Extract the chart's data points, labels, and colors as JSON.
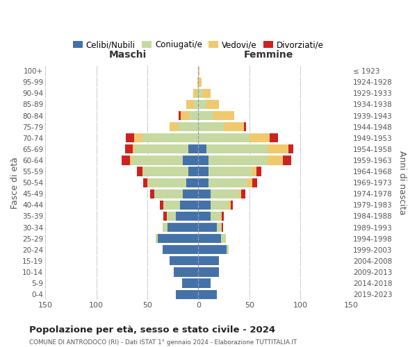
{
  "age_groups": [
    "100+",
    "95-99",
    "90-94",
    "85-89",
    "80-84",
    "75-79",
    "70-74",
    "65-69",
    "60-64",
    "55-59",
    "50-54",
    "45-49",
    "40-44",
    "35-39",
    "30-34",
    "25-29",
    "20-24",
    "15-19",
    "10-14",
    "5-9",
    "0-4"
  ],
  "birth_years": [
    "≤ 1923",
    "1924-1928",
    "1929-1933",
    "1934-1938",
    "1939-1943",
    "1944-1948",
    "1949-1953",
    "1954-1958",
    "1959-1963",
    "1964-1968",
    "1969-1973",
    "1974-1978",
    "1979-1983",
    "1984-1988",
    "1989-1993",
    "1994-1998",
    "1999-2003",
    "2004-2008",
    "2009-2013",
    "2014-2018",
    "2019-2023"
  ],
  "colors": {
    "celibi": "#4472a8",
    "coniugati": "#c5d9a0",
    "vedovi": "#f0c96e",
    "divorziati": "#cc2222"
  },
  "males": {
    "celibi": [
      0,
      0,
      0,
      0,
      0,
      0,
      0,
      10,
      15,
      10,
      12,
      15,
      18,
      22,
      30,
      40,
      35,
      28,
      24,
      16,
      22
    ],
    "coniugati": [
      0,
      0,
      1,
      4,
      9,
      20,
      55,
      52,
      50,
      44,
      37,
      28,
      16,
      9,
      5,
      2,
      0,
      0,
      0,
      0,
      0
    ],
    "vedovi": [
      0,
      1,
      4,
      8,
      8,
      8,
      8,
      2,
      2,
      1,
      1,
      0,
      0,
      0,
      0,
      0,
      0,
      0,
      0,
      0,
      0
    ],
    "divorziati": [
      0,
      0,
      0,
      0,
      2,
      0,
      8,
      8,
      8,
      5,
      4,
      4,
      4,
      3,
      0,
      0,
      0,
      0,
      0,
      0,
      0
    ]
  },
  "females": {
    "celibi": [
      0,
      0,
      0,
      0,
      0,
      0,
      0,
      8,
      10,
      10,
      10,
      12,
      12,
      12,
      18,
      22,
      28,
      20,
      20,
      12,
      18
    ],
    "coniugati": [
      0,
      0,
      4,
      8,
      15,
      25,
      50,
      60,
      58,
      42,
      38,
      28,
      18,
      10,
      5,
      5,
      2,
      0,
      0,
      0,
      0
    ],
    "vedovi": [
      1,
      3,
      8,
      12,
      20,
      20,
      20,
      20,
      15,
      5,
      5,
      2,
      2,
      1,
      0,
      0,
      0,
      0,
      0,
      0,
      0
    ],
    "divorziati": [
      0,
      0,
      0,
      0,
      0,
      2,
      8,
      5,
      8,
      5,
      5,
      4,
      2,
      2,
      1,
      0,
      0,
      0,
      0,
      0,
      0
    ]
  },
  "title": "Popolazione per età, sesso e stato civile - 2024",
  "subtitle": "COMUNE DI ANTRODOCO (RI) - Dati ISTAT 1° gennaio 2024 - Elaborazione TUTTITALIA.IT",
  "label_maschi": "Maschi",
  "label_femmine": "Femmine",
  "ylabel_left": "Fasce di età",
  "ylabel_right": "Anni di nascita",
  "xlim": 150,
  "bg_color": "#ffffff",
  "grid_color": "#cccccc",
  "legend_labels": [
    "Celibi/Nubili",
    "Coniugati/e",
    "Vedovi/e",
    "Divorziati/e"
  ]
}
